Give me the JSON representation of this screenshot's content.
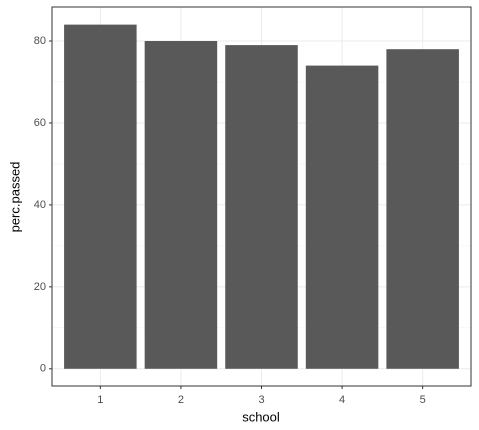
{
  "chart_data": {
    "type": "bar",
    "x_label": "school",
    "y_label": "perc.passed",
    "categories": [
      "1",
      "2",
      "3",
      "4",
      "5"
    ],
    "values": [
      84,
      80,
      79,
      74,
      78
    ],
    "color": "#595959",
    "ylim": [
      -4.2,
      88.3
    ],
    "yticks": [
      0,
      20,
      40,
      60,
      80
    ],
    "grid": true
  }
}
